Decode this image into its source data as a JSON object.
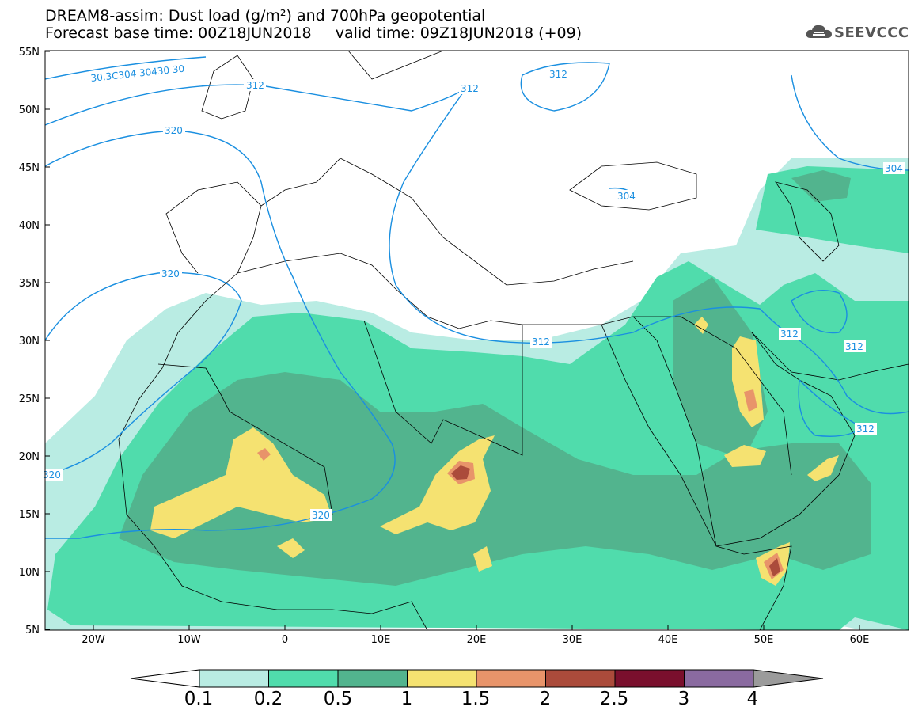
{
  "title": {
    "line1": "DREAM8-assim: Dust load (g/m²) and 700hPa geopotential",
    "line2": "Forecast base time: 00Z18JUN2018     valid time: 09Z18JUN2018 (+09)"
  },
  "logo": {
    "text": "SEEVCCC",
    "icon": "cloud-icon"
  },
  "axes": {
    "lat_labels": [
      "55N",
      "50N",
      "45N",
      "40N",
      "35N",
      "30N",
      "25N",
      "20N",
      "15N",
      "10N",
      "5N"
    ],
    "lon_labels": [
      "20W",
      "10W",
      "0",
      "10E",
      "20E",
      "30E",
      "40E",
      "50E",
      "60E"
    ]
  },
  "contour_labels": [
    "312",
    "312",
    "312",
    "304",
    "320",
    "320",
    "320",
    "320",
    "312",
    "312",
    "312",
    "312",
    "304",
    "30.3C304 30430 30"
  ],
  "colorbar": {
    "labels": [
      "0.1",
      "0.2",
      "0.5",
      "1",
      "1.5",
      "2",
      "2.5",
      "3",
      "4"
    ],
    "colors": [
      "#b9ece3",
      "#50dcac",
      "#52b48e",
      "#f5e271",
      "#e8946a",
      "#ab4b3b",
      "#7a0f2d",
      "#8a6aa0",
      "#9b9b9b"
    ]
  },
  "colors": {
    "light_dust": "#b9ece3",
    "mid_dust": "#50dcac",
    "dark_dust": "#52b48e",
    "yellow_dust": "#f5e271",
    "orange_dust": "#e8946a",
    "brown_dust": "#ab4b3b",
    "geopotential_line": "#1a8fe0",
    "coastline": "#000000"
  }
}
